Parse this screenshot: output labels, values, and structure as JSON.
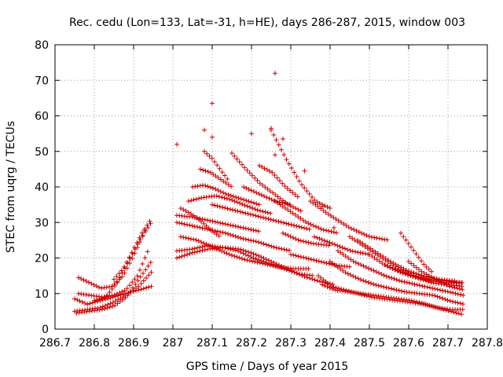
{
  "chart_data": {
    "type": "scatter",
    "title": "Rec. cedu (Lon=133, Lat=-31, h=HE), days 286-287, 2015, window 003",
    "xlabel": "GPS time / Days of year 2015",
    "ylabel": "STEC from uqrg / TECUs",
    "xlim": [
      286.7,
      287.8
    ],
    "ylim": [
      0,
      80
    ],
    "x_ticks": [
      "286.7",
      "286.8",
      "286.9",
      "287",
      "287.1",
      "287.2",
      "287.3",
      "287.4",
      "287.5",
      "287.6",
      "287.7",
      "287.8"
    ],
    "y_ticks": [
      "0",
      "10",
      "20",
      "30",
      "40",
      "50",
      "60",
      "70",
      "80"
    ],
    "grid": true,
    "marker": "plus",
    "series_color": "#cc0000",
    "arcs_segment_1": [
      {
        "x0": 286.75,
        "x1": 286.945,
        "ys": [
          8.5,
          7,
          8,
          9,
          10,
          11,
          12
        ]
      },
      {
        "x0": 286.75,
        "x1": 286.945,
        "ys": [
          5,
          5.5,
          6,
          7.5,
          9.5,
          12,
          16
        ]
      },
      {
        "x0": 286.755,
        "x1": 286.945,
        "ys": [
          4.5,
          5,
          5.5,
          6.5,
          9,
          14,
          19
        ]
      },
      {
        "x0": 286.76,
        "x1": 286.94,
        "ys": [
          10,
          9.5,
          9,
          9.5,
          11,
          15,
          23
        ]
      },
      {
        "x0": 286.76,
        "x1": 286.93,
        "ys": [
          14.5,
          13,
          11.5,
          12,
          15,
          21,
          28
        ]
      },
      {
        "x0": 286.8,
        "x1": 286.945,
        "ys": [
          8,
          9,
          13,
          19,
          25,
          30
        ]
      },
      {
        "x0": 286.85,
        "x1": 286.945,
        "ys": [
          14,
          17,
          22,
          27,
          31
        ]
      }
    ],
    "arcs_segment_2": [
      {
        "x0": 287.01,
        "x1": 287.41,
        "ys": [
          20,
          21.5,
          22.5,
          23,
          22.5,
          21,
          19,
          17,
          15,
          13.5,
          12.5
        ]
      },
      {
        "x0": 287.01,
        "x1": 287.36,
        "ys": [
          22,
          22.5,
          23.5,
          23,
          22,
          20,
          18.5,
          17,
          15.5,
          15
        ]
      },
      {
        "x0": 287.02,
        "x1": 287.35,
        "ys": [
          26,
          25,
          23,
          21,
          19.5,
          18.5,
          17.5,
          17,
          17
        ]
      },
      {
        "x0": 287.01,
        "x1": 287.3,
        "ys": [
          30,
          29,
          28,
          27,
          25.5,
          24.5,
          23,
          22
        ]
      },
      {
        "x0": 287.01,
        "x1": 287.22,
        "ys": [
          32,
          31.5,
          30.5,
          29.5,
          28.5,
          27.5
        ]
      },
      {
        "x0": 287.02,
        "x1": 287.12,
        "ys": [
          34,
          32.5,
          30.5,
          28,
          26
        ]
      },
      {
        "x0": 287.04,
        "x1": 287.25,
        "ys": [
          36,
          37,
          37.5,
          36.5,
          35,
          33.5,
          32.5
        ]
      },
      {
        "x0": 287.05,
        "x1": 287.22,
        "ys": [
          40,
          40.5,
          39.5,
          38,
          37,
          36,
          35
        ]
      },
      {
        "x0": 287.07,
        "x1": 287.15,
        "ys": [
          45,
          44,
          42,
          40
        ]
      },
      {
        "x0": 287.08,
        "x1": 287.14,
        "ys": [
          50,
          48,
          45,
          42
        ]
      },
      {
        "x0": 287.1,
        "x1": 287.35,
        "ys": [
          35,
          34,
          33,
          32,
          31,
          30,
          29,
          28
        ]
      },
      {
        "x0": 287.15,
        "x1": 287.33,
        "ys": [
          49.5,
          45,
          41,
          38,
          35,
          33
        ]
      },
      {
        "x0": 287.18,
        "x1": 287.3,
        "ys": [
          40,
          38,
          36,
          35
        ]
      },
      {
        "x0": 287.22,
        "x1": 287.32,
        "ys": [
          46,
          44,
          40,
          37
        ]
      },
      {
        "x0": 287.25,
        "x1": 287.4,
        "ys": [
          56,
          48,
          41,
          36,
          34
        ]
      },
      {
        "x0": 287.26,
        "x1": 287.42,
        "ys": [
          36,
          33,
          30,
          28,
          27
        ]
      },
      {
        "x0": 287.28,
        "x1": 287.4,
        "ys": [
          27,
          25,
          24,
          23.5
        ]
      },
      {
        "x0": 287.3,
        "x1": 287.45,
        "ys": [
          21,
          20,
          19,
          18,
          17.5
        ]
      },
      {
        "x0": 287.35,
        "x1": 287.55,
        "ys": [
          36,
          32,
          28.5,
          26,
          25
        ]
      },
      {
        "x0": 287.36,
        "x1": 287.5,
        "ys": [
          26,
          24,
          22,
          21
        ]
      }
    ],
    "arcs_segment_3": [
      {
        "x0": 287.37,
        "x1": 287.74,
        "ys": [
          15,
          12,
          11,
          10,
          9,
          8.5,
          8,
          7.5,
          7,
          6,
          5,
          4
        ]
      },
      {
        "x0": 287.38,
        "x1": 287.74,
        "ys": [
          12.5,
          11,
          10.5,
          10,
          9.5,
          9,
          8.5,
          8,
          7,
          6,
          5.5,
          5.5
        ]
      },
      {
        "x0": 287.4,
        "x1": 287.74,
        "ys": [
          19,
          16,
          14,
          12.5,
          11.5,
          10.5,
          10,
          9.5,
          8,
          7
        ]
      },
      {
        "x0": 287.42,
        "x1": 287.74,
        "ys": [
          22,
          19,
          17,
          15,
          13.5,
          12.5,
          11.5,
          10.5,
          9.5
        ]
      },
      {
        "x0": 287.45,
        "x1": 287.74,
        "ys": [
          26,
          23,
          20,
          17,
          15,
          14,
          13.5,
          13
        ]
      },
      {
        "x0": 287.47,
        "x1": 287.72,
        "ys": [
          25,
          22,
          19,
          16.5,
          15,
          14,
          13.5
        ]
      },
      {
        "x0": 287.5,
        "x1": 287.74,
        "ys": [
          21,
          18,
          16,
          14.5,
          13.5,
          13,
          13
        ]
      },
      {
        "x0": 287.54,
        "x1": 287.74,
        "ys": [
          18,
          16,
          14.5,
          13,
          12.5,
          12
        ]
      },
      {
        "x0": 287.58,
        "x1": 287.66,
        "ys": [
          27,
          24,
          21,
          18,
          16
        ]
      },
      {
        "x0": 287.6,
        "x1": 287.74,
        "ys": [
          19,
          16,
          14,
          12,
          11
        ]
      }
    ],
    "outliers": [
      {
        "x": 287.26,
        "y": 72
      },
      {
        "x": 287.1,
        "y": 63.5
      },
      {
        "x": 287.1,
        "y": 54
      },
      {
        "x": 287.25,
        "y": 56.5
      },
      {
        "x": 287.2,
        "y": 55
      },
      {
        "x": 287.28,
        "y": 53.5
      },
      {
        "x": 287.01,
        "y": 52
      },
      {
        "x": 287.08,
        "y": 56
      },
      {
        "x": 287.26,
        "y": 49
      },
      {
        "x": 287.38,
        "y": 34.5
      },
      {
        "x": 287.335,
        "y": 44.5
      },
      {
        "x": 287.41,
        "y": 28.5
      }
    ]
  }
}
